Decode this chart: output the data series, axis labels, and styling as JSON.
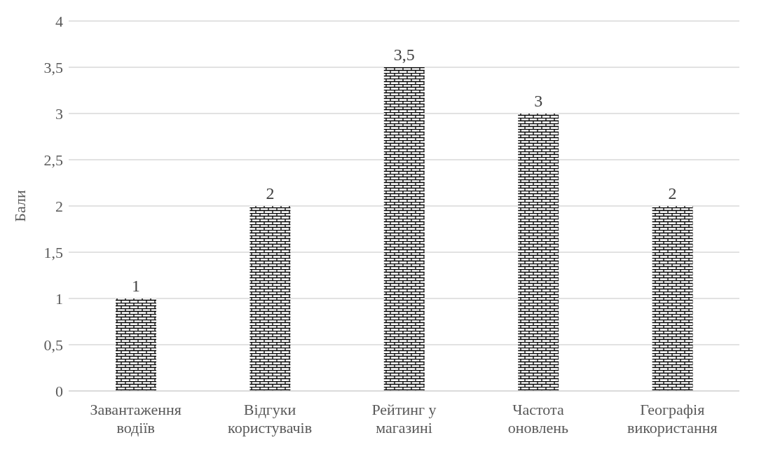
{
  "chart_data": {
    "type": "bar",
    "ylabel": "Бали",
    "categories": [
      "Завантаження водіїв",
      "Відгуки користувачів",
      "Рейтинг у магазині",
      "Частота оновлень",
      "Географія використання"
    ],
    "values": [
      1,
      2,
      3.5,
      3,
      2
    ],
    "value_labels": [
      "1",
      "2",
      "3,5",
      "3",
      "2"
    ],
    "color": "#000000",
    "ylim": [
      0,
      4
    ],
    "yticks": [
      0,
      {
        "value": 0.5,
        "label": "0,5"
      },
      1,
      {
        "value": 1.5,
        "label": "1,5"
      },
      2,
      {
        "value": 2.5,
        "label": "2,5"
      },
      3,
      {
        "value": 3.5,
        "label": "3,5"
      },
      4
    ],
    "grid": "y"
  }
}
